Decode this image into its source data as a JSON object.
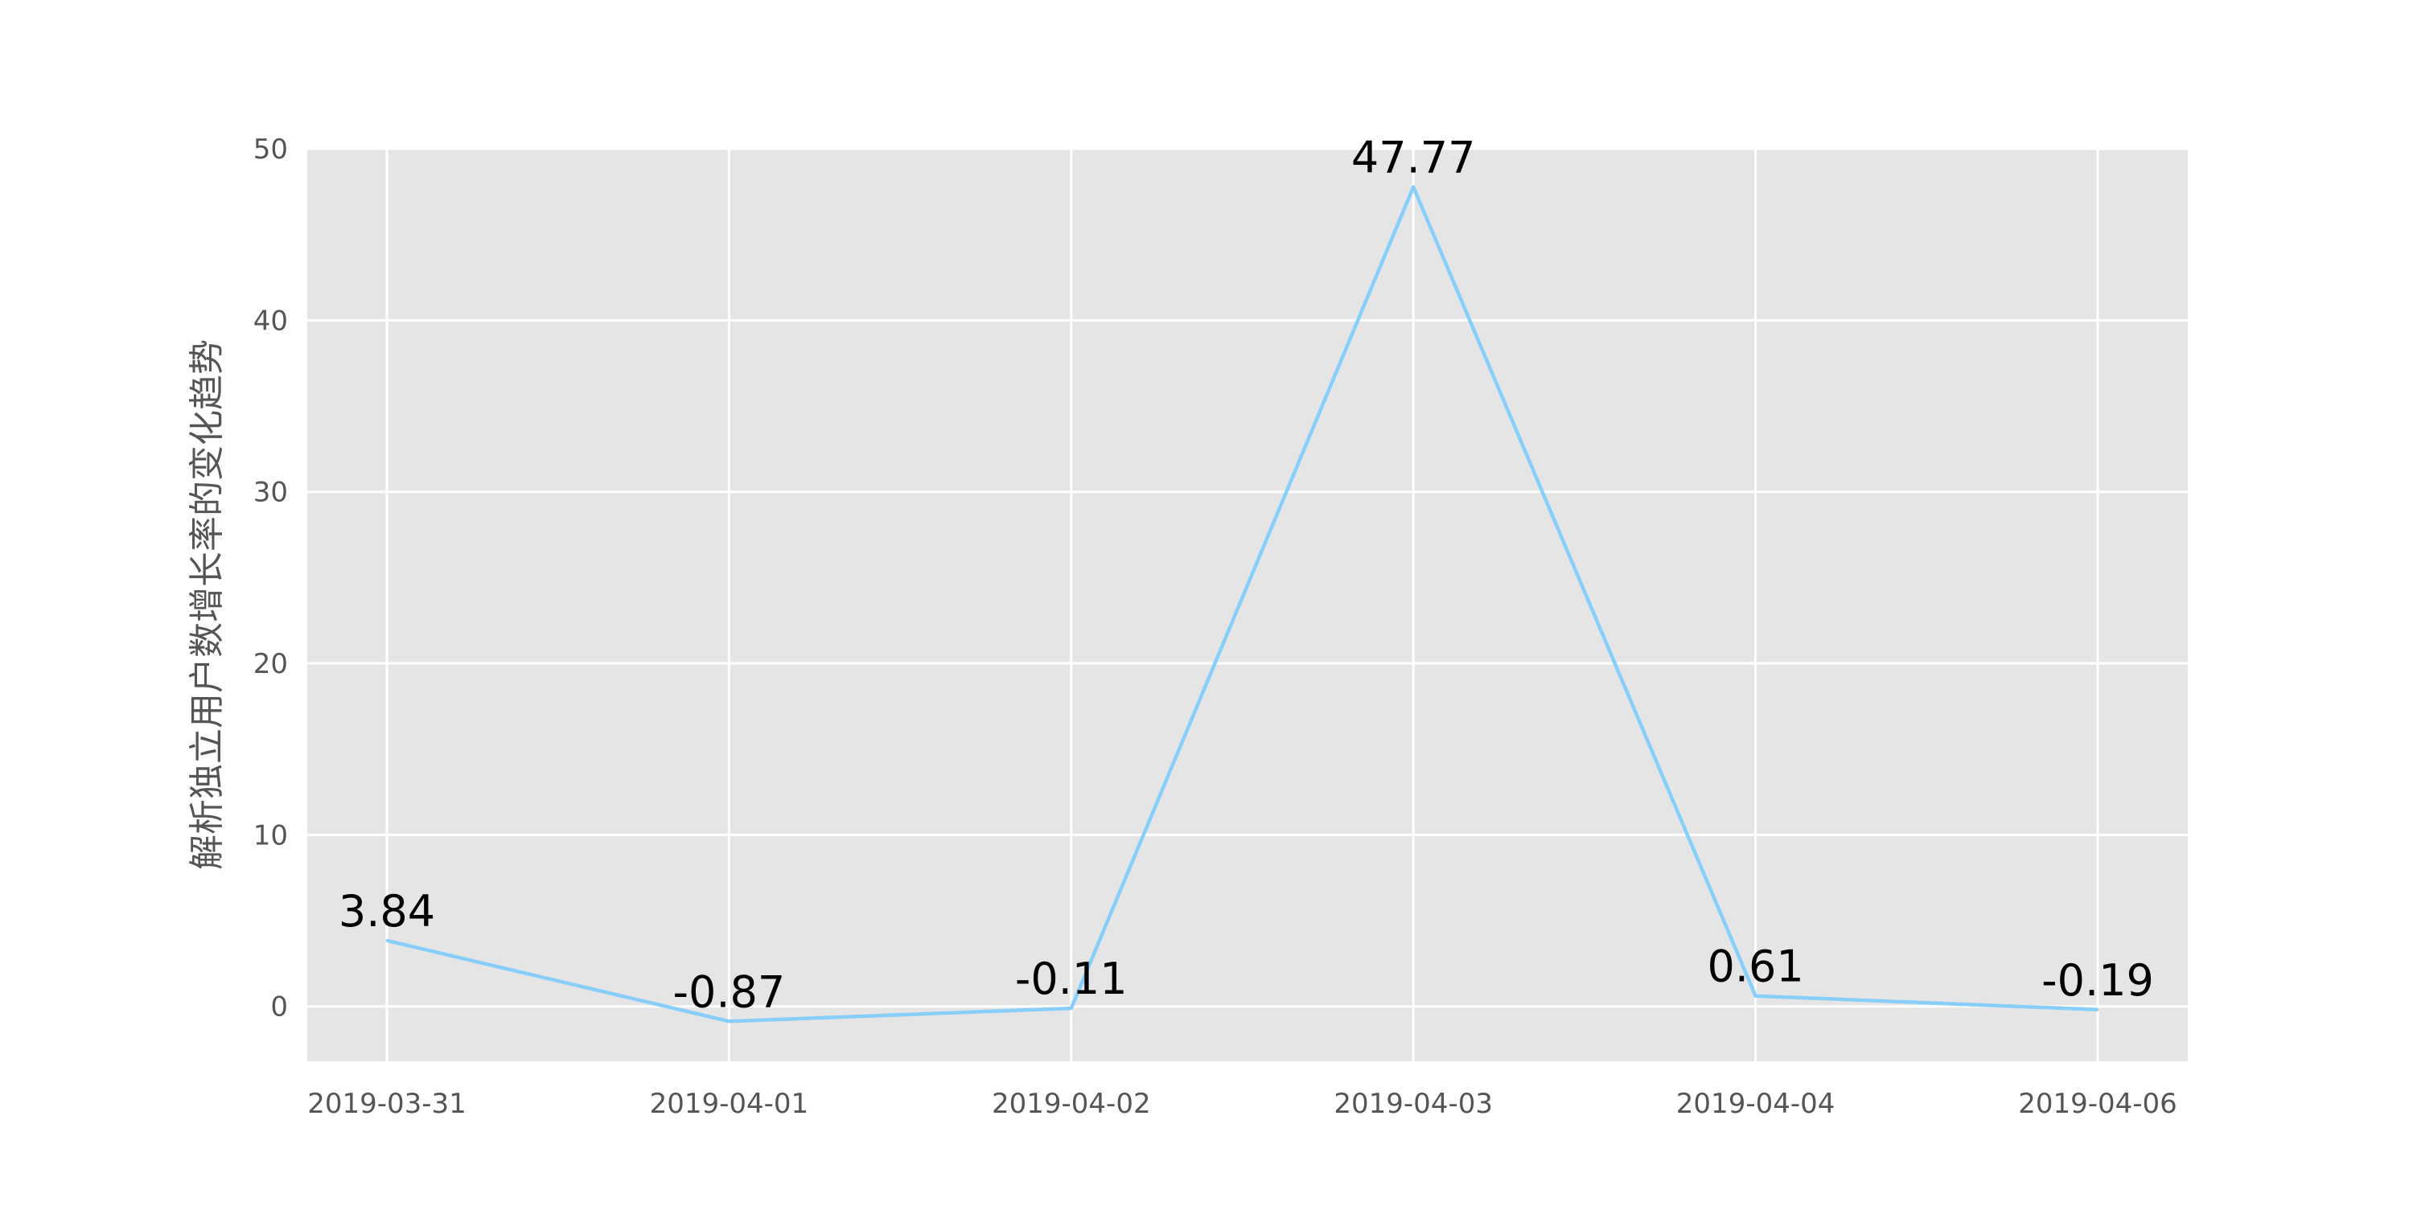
{
  "chart_data": {
    "type": "line",
    "title": "",
    "xlabel": "",
    "ylabel": "解析独立用户数增长率的变化趋势",
    "categories": [
      "2019-03-31",
      "2019-04-01",
      "2019-04-02",
      "2019-04-03",
      "2019-04-04",
      "2019-04-06"
    ],
    "values": [
      3.84,
      -0.87,
      -0.11,
      47.77,
      0.61,
      -0.19
    ],
    "data_labels": [
      "3.84",
      "-0.87",
      "-0.11",
      "47.77",
      "0.61",
      "-0.19"
    ],
    "ylim": [
      -3.2,
      50
    ],
    "yticks": [
      0,
      10,
      20,
      30,
      40,
      50
    ],
    "grid": true,
    "line_color": "#87CEFA",
    "background_color": "#E5E5E5",
    "grid_color": "#FFFFFF"
  }
}
